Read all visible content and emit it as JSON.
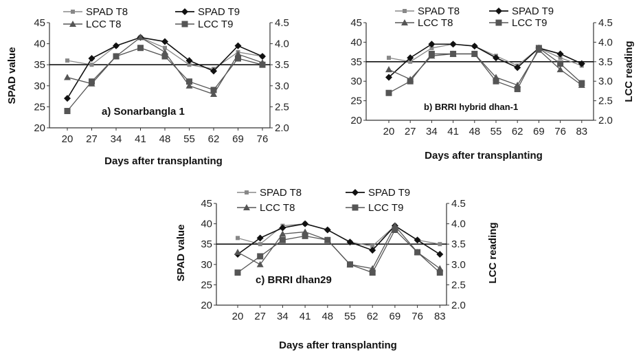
{
  "chart_data": [
    {
      "type": "line",
      "title": "a) Sonarbangla 1",
      "xlabel": "Days after transplanting",
      "ylabel": "SPAD value",
      "ylabel2": "",
      "categories": [
        "20",
        "27",
        "34",
        "41",
        "48",
        "55",
        "62",
        "69",
        "76"
      ],
      "ylim": [
        20,
        45
      ],
      "yticks": [
        "20",
        "25",
        "30",
        "35",
        "40",
        "45"
      ],
      "y2lim": [
        2.0,
        4.5
      ],
      "y2ticks": [
        "2.0",
        "2.5",
        "3.0",
        "3.5",
        "4.0",
        "4.5"
      ],
      "reference_line": 35,
      "series": [
        {
          "name": "SPAD T8",
          "axis": "left",
          "marker": "square-small",
          "color": "#888888",
          "values": [
            36,
            35,
            39.5,
            41.5,
            39,
            35,
            34,
            38,
            37
          ]
        },
        {
          "name": "SPAD T9",
          "axis": "left",
          "marker": "diamond",
          "color": "#111111",
          "values": [
            27,
            36.5,
            39.5,
            41.5,
            40.5,
            36,
            33.5,
            39.5,
            37
          ]
        },
        {
          "name": "LCC T8",
          "axis": "right",
          "marker": "triangle",
          "color": "#555555",
          "values": [
            3.2,
            3.05,
            3.7,
            4.15,
            3.8,
            3.0,
            2.8,
            3.75,
            3.55
          ]
        },
        {
          "name": "LCC T9",
          "axis": "right",
          "marker": "square",
          "color": "#555555",
          "values": [
            2.4,
            3.1,
            3.7,
            3.9,
            3.7,
            3.1,
            2.9,
            3.65,
            3.5
          ]
        }
      ]
    },
    {
      "type": "line",
      "title": "b) BRRI hybrid dhan-1",
      "xlabel": "Days after transplanting",
      "ylabel": "",
      "ylabel2": "LCC reading",
      "categories": [
        "20",
        "27",
        "34",
        "41",
        "48",
        "55",
        "62",
        "69",
        "76",
        "83"
      ],
      "ylim": [
        20,
        45
      ],
      "yticks": [
        "20",
        "25",
        "30",
        "35",
        "40",
        "45"
      ],
      "y2lim": [
        2.0,
        4.5
      ],
      "y2ticks": [
        "2.0",
        "2.5",
        "3.0",
        "3.5",
        "4.0",
        "4.5"
      ],
      "reference_line": 35,
      "series": [
        {
          "name": "SPAD T8",
          "axis": "left",
          "marker": "square-small",
          "color": "#888888",
          "values": [
            36,
            35,
            38.5,
            39.5,
            39,
            36.5,
            34,
            38.5,
            36,
            34
          ]
        },
        {
          "name": "SPAD T9",
          "axis": "left",
          "marker": "diamond",
          "color": "#111111",
          "values": [
            31,
            36,
            39.5,
            39.5,
            39,
            36,
            33.5,
            38.5,
            37,
            34.5
          ]
        },
        {
          "name": "LCC T8",
          "axis": "right",
          "marker": "triangle",
          "color": "#555555",
          "values": [
            3.3,
            3.05,
            3.65,
            3.7,
            3.7,
            3.1,
            2.9,
            3.8,
            3.3,
            2.9
          ]
        },
        {
          "name": "LCC T9",
          "axis": "right",
          "marker": "square",
          "color": "#555555",
          "values": [
            2.7,
            3.0,
            3.7,
            3.7,
            3.7,
            3.0,
            2.8,
            3.85,
            3.45,
            2.95
          ]
        }
      ]
    },
    {
      "type": "line",
      "title": "c) BRRI dhan29",
      "xlabel": "Days after transplanting",
      "ylabel": "SPAD value",
      "ylabel2": "LCC reading",
      "categories": [
        "20",
        "27",
        "34",
        "41",
        "48",
        "55",
        "62",
        "69",
        "76",
        "83"
      ],
      "ylim": [
        20,
        45
      ],
      "yticks": [
        "20",
        "25",
        "30",
        "35",
        "40",
        "45"
      ],
      "y2lim": [
        2.0,
        4.5
      ],
      "y2ticks": [
        "2.0",
        "2.5",
        "3.0",
        "3.5",
        "4.0",
        "4.5"
      ],
      "reference_line": 35,
      "series": [
        {
          "name": "SPAD T8",
          "axis": "left",
          "marker": "square-small",
          "color": "#888888",
          "values": [
            36.5,
            35,
            39.5,
            40,
            38.5,
            35.5,
            34.5,
            39.5,
            36,
            35
          ]
        },
        {
          "name": "SPAD T9",
          "axis": "left",
          "marker": "diamond",
          "color": "#111111",
          "values": [
            32.5,
            36.5,
            39,
            40,
            38.5,
            35.5,
            33.5,
            39.5,
            36,
            32.5
          ]
        },
        {
          "name": "LCC T8",
          "axis": "right",
          "marker": "triangle",
          "color": "#555555",
          "values": [
            3.3,
            3.0,
            3.75,
            3.8,
            3.6,
            3.0,
            2.9,
            3.95,
            3.3,
            2.9
          ]
        },
        {
          "name": "LCC T9",
          "axis": "right",
          "marker": "square",
          "color": "#555555",
          "values": [
            2.8,
            3.2,
            3.6,
            3.7,
            3.6,
            3.0,
            2.8,
            3.85,
            3.3,
            2.8
          ]
        }
      ]
    }
  ]
}
